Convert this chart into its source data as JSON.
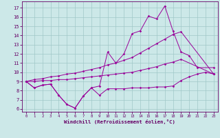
{
  "xlabel": "Windchill (Refroidissement éolien,°C)",
  "bg_color": "#cce8e8",
  "line_color": "#990099",
  "xlim": [
    -0.5,
    23.5
  ],
  "ylim": [
    5.7,
    17.7
  ],
  "xticks": [
    0,
    1,
    2,
    3,
    4,
    5,
    6,
    7,
    8,
    9,
    10,
    11,
    12,
    13,
    14,
    15,
    16,
    17,
    18,
    19,
    20,
    21,
    22,
    23
  ],
  "yticks": [
    6,
    7,
    8,
    9,
    10,
    11,
    12,
    13,
    14,
    15,
    16,
    17
  ],
  "line1_x": [
    0,
    1,
    2,
    3,
    4,
    5,
    6,
    7,
    8,
    9,
    10,
    11,
    12,
    13,
    14,
    15,
    16,
    17,
    18,
    19,
    20,
    21,
    22,
    23
  ],
  "line1_y": [
    9.0,
    8.3,
    8.6,
    8.7,
    7.5,
    6.5,
    6.1,
    7.4,
    8.3,
    7.5,
    8.2,
    8.2,
    8.2,
    8.3,
    8.3,
    8.3,
    8.4,
    8.4,
    8.5,
    9.1,
    9.5,
    9.8,
    10.0,
    9.8
  ],
  "line2_x": [
    0,
    1,
    2,
    3,
    4,
    5,
    6,
    7,
    8,
    9,
    10,
    11,
    12,
    13,
    14,
    15,
    16,
    17,
    18,
    19,
    20,
    21,
    23
  ],
  "line2_y": [
    9.0,
    8.3,
    8.6,
    8.7,
    7.5,
    6.5,
    6.1,
    7.4,
    8.3,
    8.5,
    12.2,
    11.0,
    12.0,
    14.2,
    14.5,
    16.1,
    15.8,
    17.2,
    14.5,
    12.2,
    11.8,
    10.5,
    10.5
  ],
  "line3_x": [
    0,
    1,
    2,
    3,
    4,
    5,
    6,
    7,
    8,
    9,
    10,
    11,
    12,
    13,
    14,
    15,
    16,
    17,
    18,
    19,
    23
  ],
  "line3_y": [
    9.0,
    9.2,
    9.3,
    9.5,
    9.6,
    9.8,
    9.9,
    10.1,
    10.3,
    10.5,
    10.8,
    11.0,
    11.3,
    11.6,
    12.1,
    12.6,
    13.1,
    13.6,
    14.1,
    14.4,
    9.8
  ],
  "line4_x": [
    0,
    1,
    2,
    3,
    4,
    5,
    6,
    7,
    8,
    9,
    10,
    11,
    12,
    13,
    14,
    15,
    16,
    17,
    18,
    19,
    23
  ],
  "line4_y": [
    9.0,
    9.0,
    9.1,
    9.1,
    9.2,
    9.2,
    9.3,
    9.4,
    9.5,
    9.6,
    9.7,
    9.8,
    9.9,
    10.0,
    10.2,
    10.4,
    10.6,
    10.9,
    11.1,
    11.4,
    9.8
  ]
}
